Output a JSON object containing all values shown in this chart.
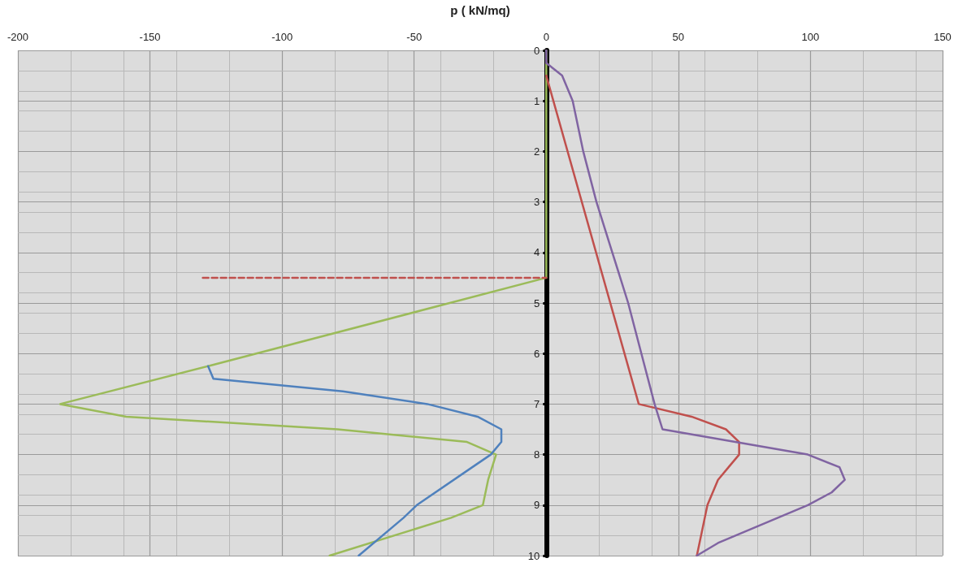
{
  "chart_data": {
    "type": "line",
    "xlabel": "p ( kN/mq)",
    "xlim": [
      -200,
      150
    ],
    "xticks": [
      -200,
      -150,
      -100,
      -50,
      0,
      50,
      100,
      150
    ],
    "ylim": [
      10,
      0
    ],
    "yticks": [
      0,
      1,
      2,
      3,
      4,
      5,
      6,
      7,
      8,
      9,
      10
    ],
    "grid": true,
    "marker": "none",
    "line_style": "solid",
    "series": [
      {
        "color": "#9bbb59",
        "x": [
          0,
          0,
          -128,
          -184,
          -159,
          -79,
          -30,
          -19,
          -22,
          -24,
          -36,
          -82
        ],
        "values": [
          0,
          4.5,
          6.25,
          7,
          7.25,
          7.5,
          7.75,
          8,
          8.5,
          9,
          9.25,
          10
        ]
      },
      {
        "color": "#4f81bd",
        "x": [
          -128,
          -126,
          -77,
          -45,
          -26,
          -17,
          -17,
          -21,
          -28,
          -49,
          -54,
          -71
        ],
        "values": [
          6.25,
          6.5,
          6.75,
          7,
          7.25,
          7.5,
          7.75,
          8,
          8.25,
          9,
          9.25,
          10
        ]
      },
      {
        "color": "#c0504d",
        "x": [
          0,
          35,
          55,
          68,
          73,
          73,
          69,
          65,
          61,
          59,
          57
        ],
        "values": [
          0.5,
          7,
          7.25,
          7.5,
          7.75,
          8,
          8.25,
          8.5,
          9,
          9.5,
          10
        ]
      },
      {
        "color": "#8064a2",
        "x": [
          0,
          0,
          6,
          10,
          14,
          19,
          25,
          31,
          36,
          41,
          44,
          99,
          111,
          113,
          108,
          99,
          65,
          57
        ],
        "values": [
          0,
          0.25,
          0.5,
          1,
          2,
          3,
          4,
          5,
          6,
          7,
          7.5,
          8,
          8.25,
          8.5,
          8.75,
          9,
          9.75,
          10
        ]
      },
      {
        "color": "#c0504d",
        "line_style": "dashed",
        "x": [
          -130,
          0
        ],
        "values": [
          4.5,
          4.5
        ]
      }
    ]
  }
}
